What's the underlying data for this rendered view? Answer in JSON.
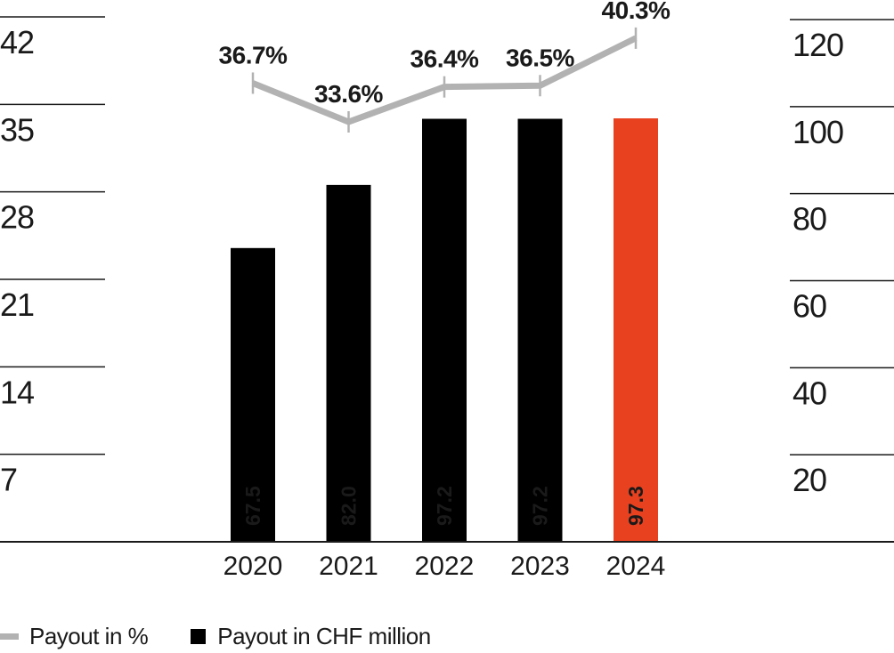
{
  "chart_data": {
    "type": "bar+line combo",
    "title": "",
    "categories": [
      "2020",
      "2021",
      "2022",
      "2023",
      "2024"
    ],
    "series": [
      {
        "name": "Payout in CHF million",
        "type": "bar",
        "axis": "right",
        "values": [
          67.5,
          82.0,
          97.2,
          97.2,
          97.3
        ],
        "labels": [
          "67.5",
          "82.0",
          "97.2",
          "97.2",
          "97.3"
        ]
      },
      {
        "name": "Payout in %",
        "type": "line",
        "axis": "left",
        "values": [
          36.7,
          33.6,
          36.4,
          36.5,
          40.3
        ],
        "labels": [
          "36.7%",
          "33.6%",
          "36.4%",
          "36.5%",
          "40.3%"
        ]
      }
    ],
    "left_axis": {
      "ticks": [
        42,
        35,
        28,
        21,
        14,
        7
      ],
      "range": [
        0,
        43.5
      ],
      "side": "left"
    },
    "right_axis": {
      "ticks": [
        120,
        100,
        80,
        60,
        40,
        20
      ],
      "range": [
        0,
        124.5
      ],
      "side": "right"
    },
    "grid": "horizontal segments on both outer margins only",
    "legend_position": "bottom-left",
    "colors": {
      "bar": "#000000",
      "bar_highlight": "#e8411f",
      "highlight_category": "2024",
      "line": "#b2b2b2",
      "pct_label": "#b2b2b2",
      "bar_value_text": "#ffffff",
      "axis_text": "#1a1a1a",
      "axis_line": "#1a1a1a"
    },
    "legend": [
      {
        "label": "Payout in %",
        "swatch": "line"
      },
      {
        "label": "Payout in CHF million",
        "swatch": "square"
      }
    ]
  }
}
